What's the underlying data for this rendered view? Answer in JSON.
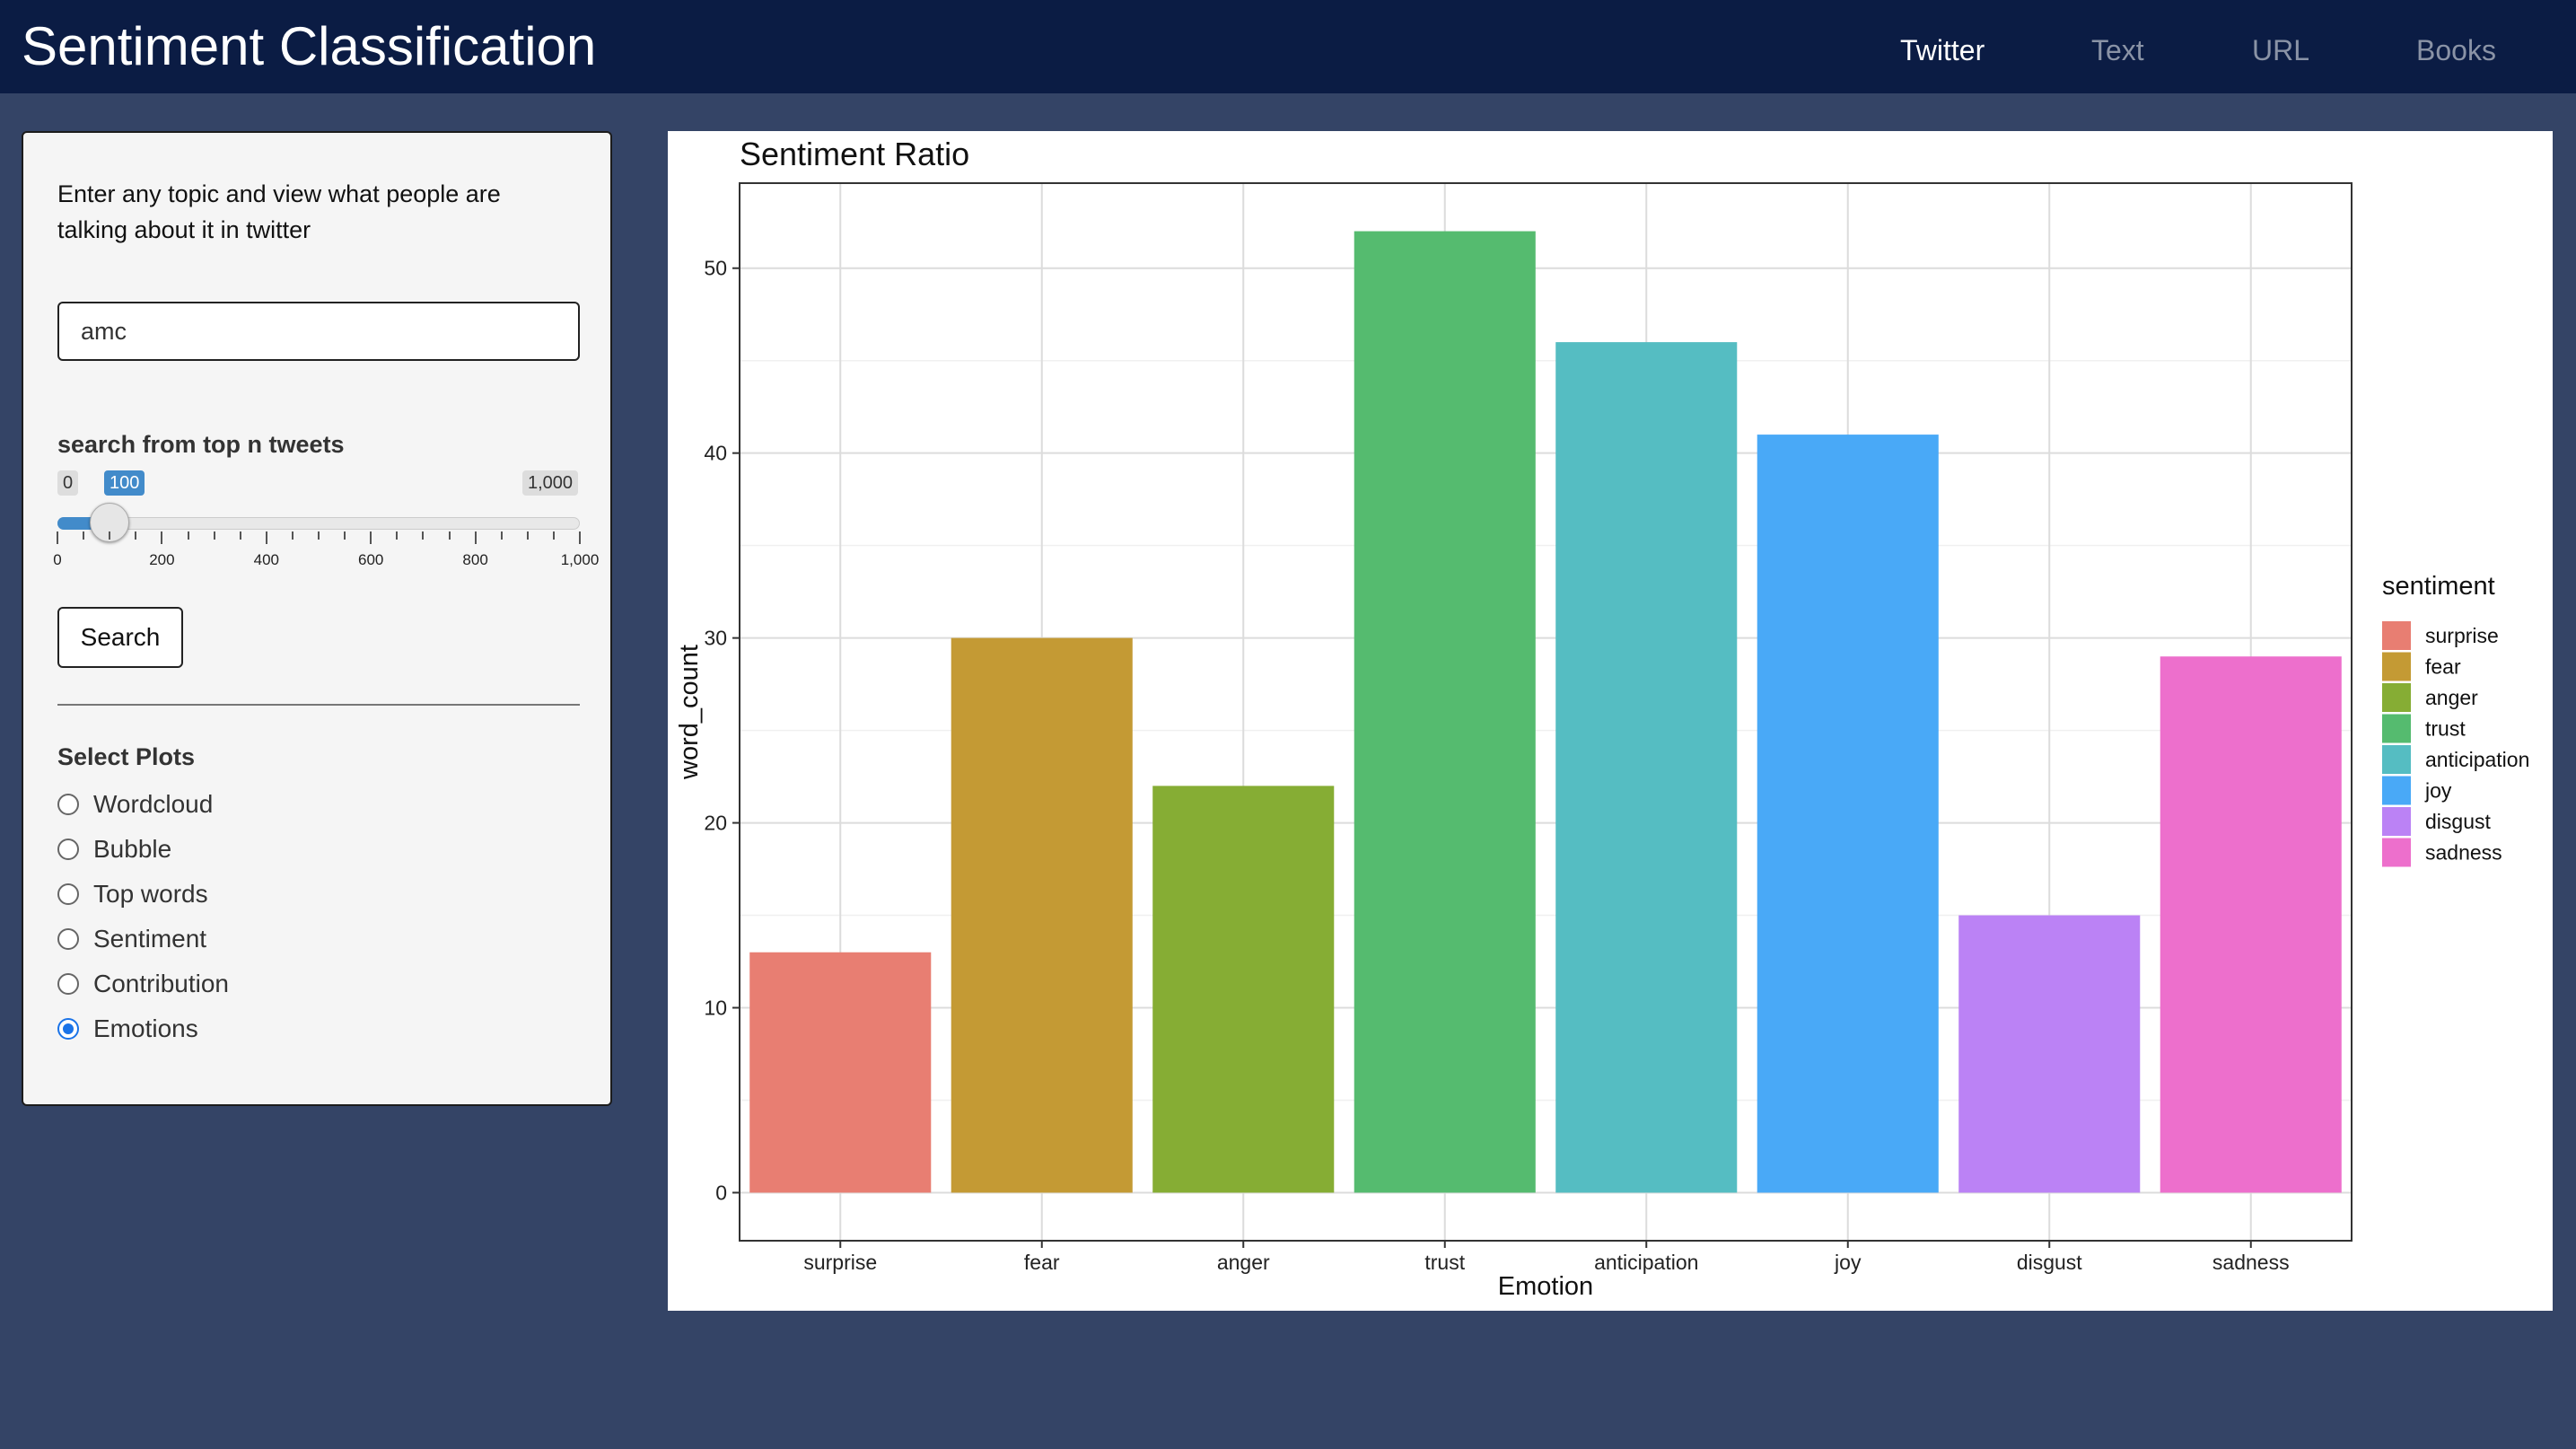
{
  "app": {
    "title": "Sentiment Classification",
    "tabs": [
      {
        "label": "Twitter",
        "active": true
      },
      {
        "label": "Text",
        "active": false
      },
      {
        "label": "URL",
        "active": false
      },
      {
        "label": "Books",
        "active": false
      }
    ]
  },
  "sidebar": {
    "intro": "Enter any topic and view what people are talking about it in twitter",
    "topic_input": {
      "value": "amc",
      "placeholder": ""
    },
    "slider": {
      "label": "search from top n tweets",
      "min": 0,
      "max": 1000,
      "value": 100,
      "min_label": "0",
      "max_label": "1,000",
      "value_label": "100",
      "tick_labels": [
        "0",
        "200",
        "400",
        "600",
        "800",
        "1,000"
      ]
    },
    "search_button": "Search",
    "plots_label": "Select Plots",
    "plot_options": [
      {
        "label": "Wordcloud",
        "checked": false
      },
      {
        "label": "Bubble",
        "checked": false
      },
      {
        "label": "Top words",
        "checked": false
      },
      {
        "label": "Sentiment",
        "checked": false
      },
      {
        "label": "Contribution",
        "checked": false
      },
      {
        "label": "Emotions",
        "checked": true
      }
    ]
  },
  "chart_data": {
    "type": "bar",
    "title": "Sentiment Ratio",
    "xlabel": "Emotion",
    "ylabel": "word_count",
    "categories": [
      "surprise",
      "fear",
      "anger",
      "trust",
      "anticipation",
      "joy",
      "disgust",
      "sadness"
    ],
    "values": [
      13,
      30,
      22,
      52,
      46,
      41,
      15,
      29
    ],
    "colors": [
      "#e87e72",
      "#c49a34",
      "#86ad34",
      "#55bb6f",
      "#55bdc2",
      "#49a9f7",
      "#bb82f5",
      "#ed6fcc"
    ],
    "ylim": [
      -2.6,
      54.6
    ],
    "yticks": [
      0,
      10,
      20,
      30,
      40,
      50
    ],
    "grid": true,
    "legend": {
      "title": "sentiment",
      "position": "right"
    }
  }
}
